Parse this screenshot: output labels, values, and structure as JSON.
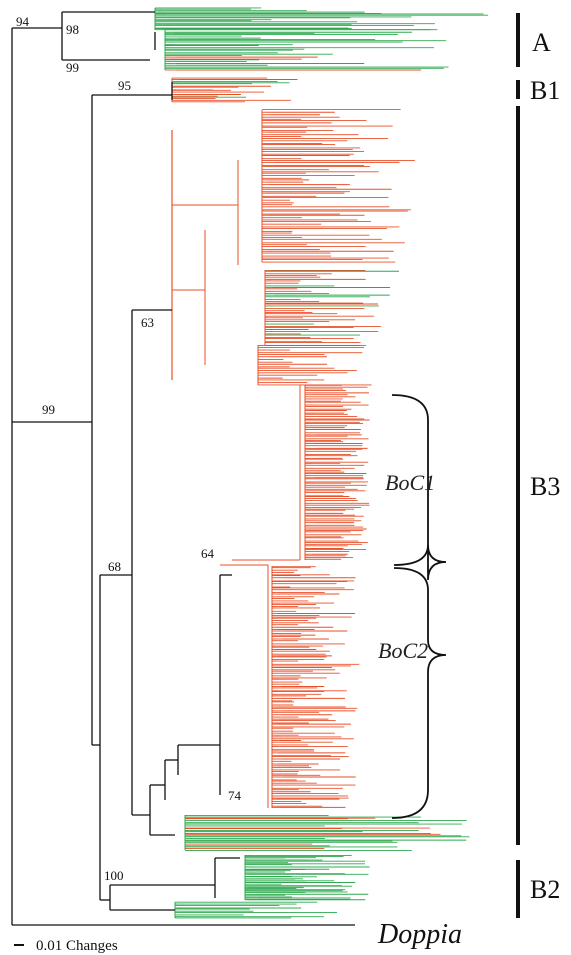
{
  "colors": {
    "green": "#2fa84f",
    "red": "#e8502a",
    "black": "#111111"
  },
  "bootstrap": [
    "94",
    "98",
    "99",
    "95",
    "99",
    "63",
    "68",
    "64",
    "74",
    "100"
  ],
  "clades": [
    "A",
    "B1",
    "B3",
    "B2"
  ],
  "subclades": [
    "BoC1",
    "BoC2"
  ],
  "outgroup": "Doppia",
  "scale_label": "0.01 Changes"
}
